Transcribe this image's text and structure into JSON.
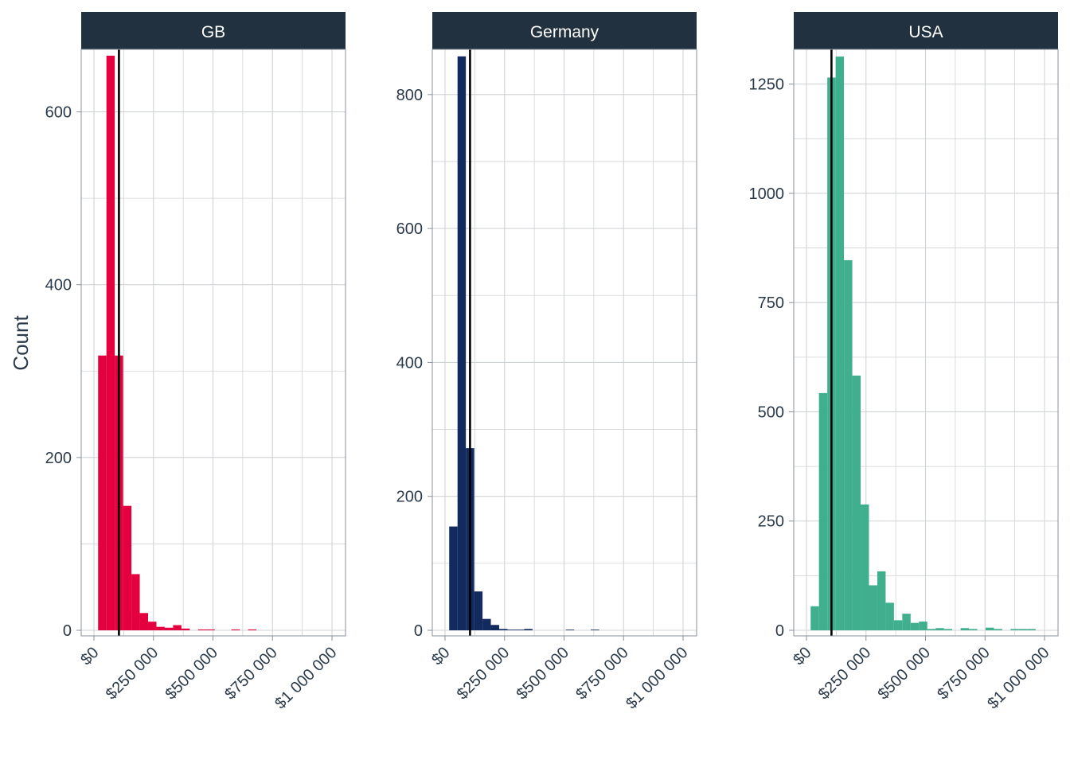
{
  "chart_data": {
    "type": "bar",
    "ylabel": "Count",
    "xlabel": "",
    "strip_color": "#223140",
    "grid": true,
    "xlim": [
      0,
      1000000
    ],
    "x_ticks": [
      0,
      250000,
      500000,
      750000,
      1000000
    ],
    "x_tick_labels": [
      "$0",
      "$250 000",
      "$500 000",
      "$750 000",
      "$1 000 000"
    ],
    "bin_width": 35000,
    "facets": [
      {
        "name": "GB",
        "color": "#e4003f",
        "ylim": [
          0,
          665
        ],
        "y_ticks": [
          0,
          200,
          400,
          600
        ],
        "y_tick_labels": [
          "0",
          "200",
          "400",
          "600"
        ],
        "vline": 105000,
        "bins": [
          {
            "x": 35000,
            "count": 318
          },
          {
            "x": 70000,
            "count": 665
          },
          {
            "x": 105000,
            "count": 318
          },
          {
            "x": 140000,
            "count": 144
          },
          {
            "x": 175000,
            "count": 65
          },
          {
            "x": 210000,
            "count": 20
          },
          {
            "x": 245000,
            "count": 10
          },
          {
            "x": 280000,
            "count": 4
          },
          {
            "x": 315000,
            "count": 3
          },
          {
            "x": 350000,
            "count": 6
          },
          {
            "x": 385000,
            "count": 2
          },
          {
            "x": 455000,
            "count": 1
          },
          {
            "x": 490000,
            "count": 1
          },
          {
            "x": 595000,
            "count": 1
          },
          {
            "x": 665000,
            "count": 1
          }
        ]
      },
      {
        "name": "Germany",
        "color": "#132a5e",
        "ylim": [
          0,
          858
        ],
        "y_ticks": [
          0,
          200,
          400,
          600,
          800
        ],
        "y_tick_labels": [
          "0",
          "200",
          "400",
          "600",
          "800"
        ],
        "vline": 105000,
        "bins": [
          {
            "x": 35000,
            "count": 155
          },
          {
            "x": 70000,
            "count": 857
          },
          {
            "x": 105000,
            "count": 272
          },
          {
            "x": 140000,
            "count": 58
          },
          {
            "x": 175000,
            "count": 17
          },
          {
            "x": 210000,
            "count": 8
          },
          {
            "x": 245000,
            "count": 2
          },
          {
            "x": 280000,
            "count": 1
          },
          {
            "x": 315000,
            "count": 1
          },
          {
            "x": 350000,
            "count": 2
          },
          {
            "x": 525000,
            "count": 1
          },
          {
            "x": 630000,
            "count": 1
          }
        ]
      },
      {
        "name": "USA",
        "color": "#40af8e",
        "ylim": [
          0,
          1315
        ],
        "y_ticks": [
          0,
          250,
          500,
          750,
          1000,
          1250
        ],
        "y_tick_labels": [
          "0",
          "250",
          "500",
          "750",
          "1000",
          "1250"
        ],
        "vline": 105000,
        "bins": [
          {
            "x": 35000,
            "count": 55
          },
          {
            "x": 70000,
            "count": 543
          },
          {
            "x": 105000,
            "count": 1265
          },
          {
            "x": 140000,
            "count": 1313
          },
          {
            "x": 175000,
            "count": 847
          },
          {
            "x": 210000,
            "count": 583
          },
          {
            "x": 245000,
            "count": 288
          },
          {
            "x": 280000,
            "count": 103
          },
          {
            "x": 315000,
            "count": 135
          },
          {
            "x": 350000,
            "count": 63
          },
          {
            "x": 385000,
            "count": 23
          },
          {
            "x": 420000,
            "count": 38
          },
          {
            "x": 455000,
            "count": 17
          },
          {
            "x": 490000,
            "count": 20
          },
          {
            "x": 525000,
            "count": 3
          },
          {
            "x": 560000,
            "count": 5
          },
          {
            "x": 595000,
            "count": 3
          },
          {
            "x": 665000,
            "count": 5
          },
          {
            "x": 700000,
            "count": 3
          },
          {
            "x": 770000,
            "count": 6
          },
          {
            "x": 805000,
            "count": 3
          },
          {
            "x": 875000,
            "count": 3
          },
          {
            "x": 910000,
            "count": 3
          },
          {
            "x": 945000,
            "count": 3
          }
        ]
      }
    ]
  }
}
